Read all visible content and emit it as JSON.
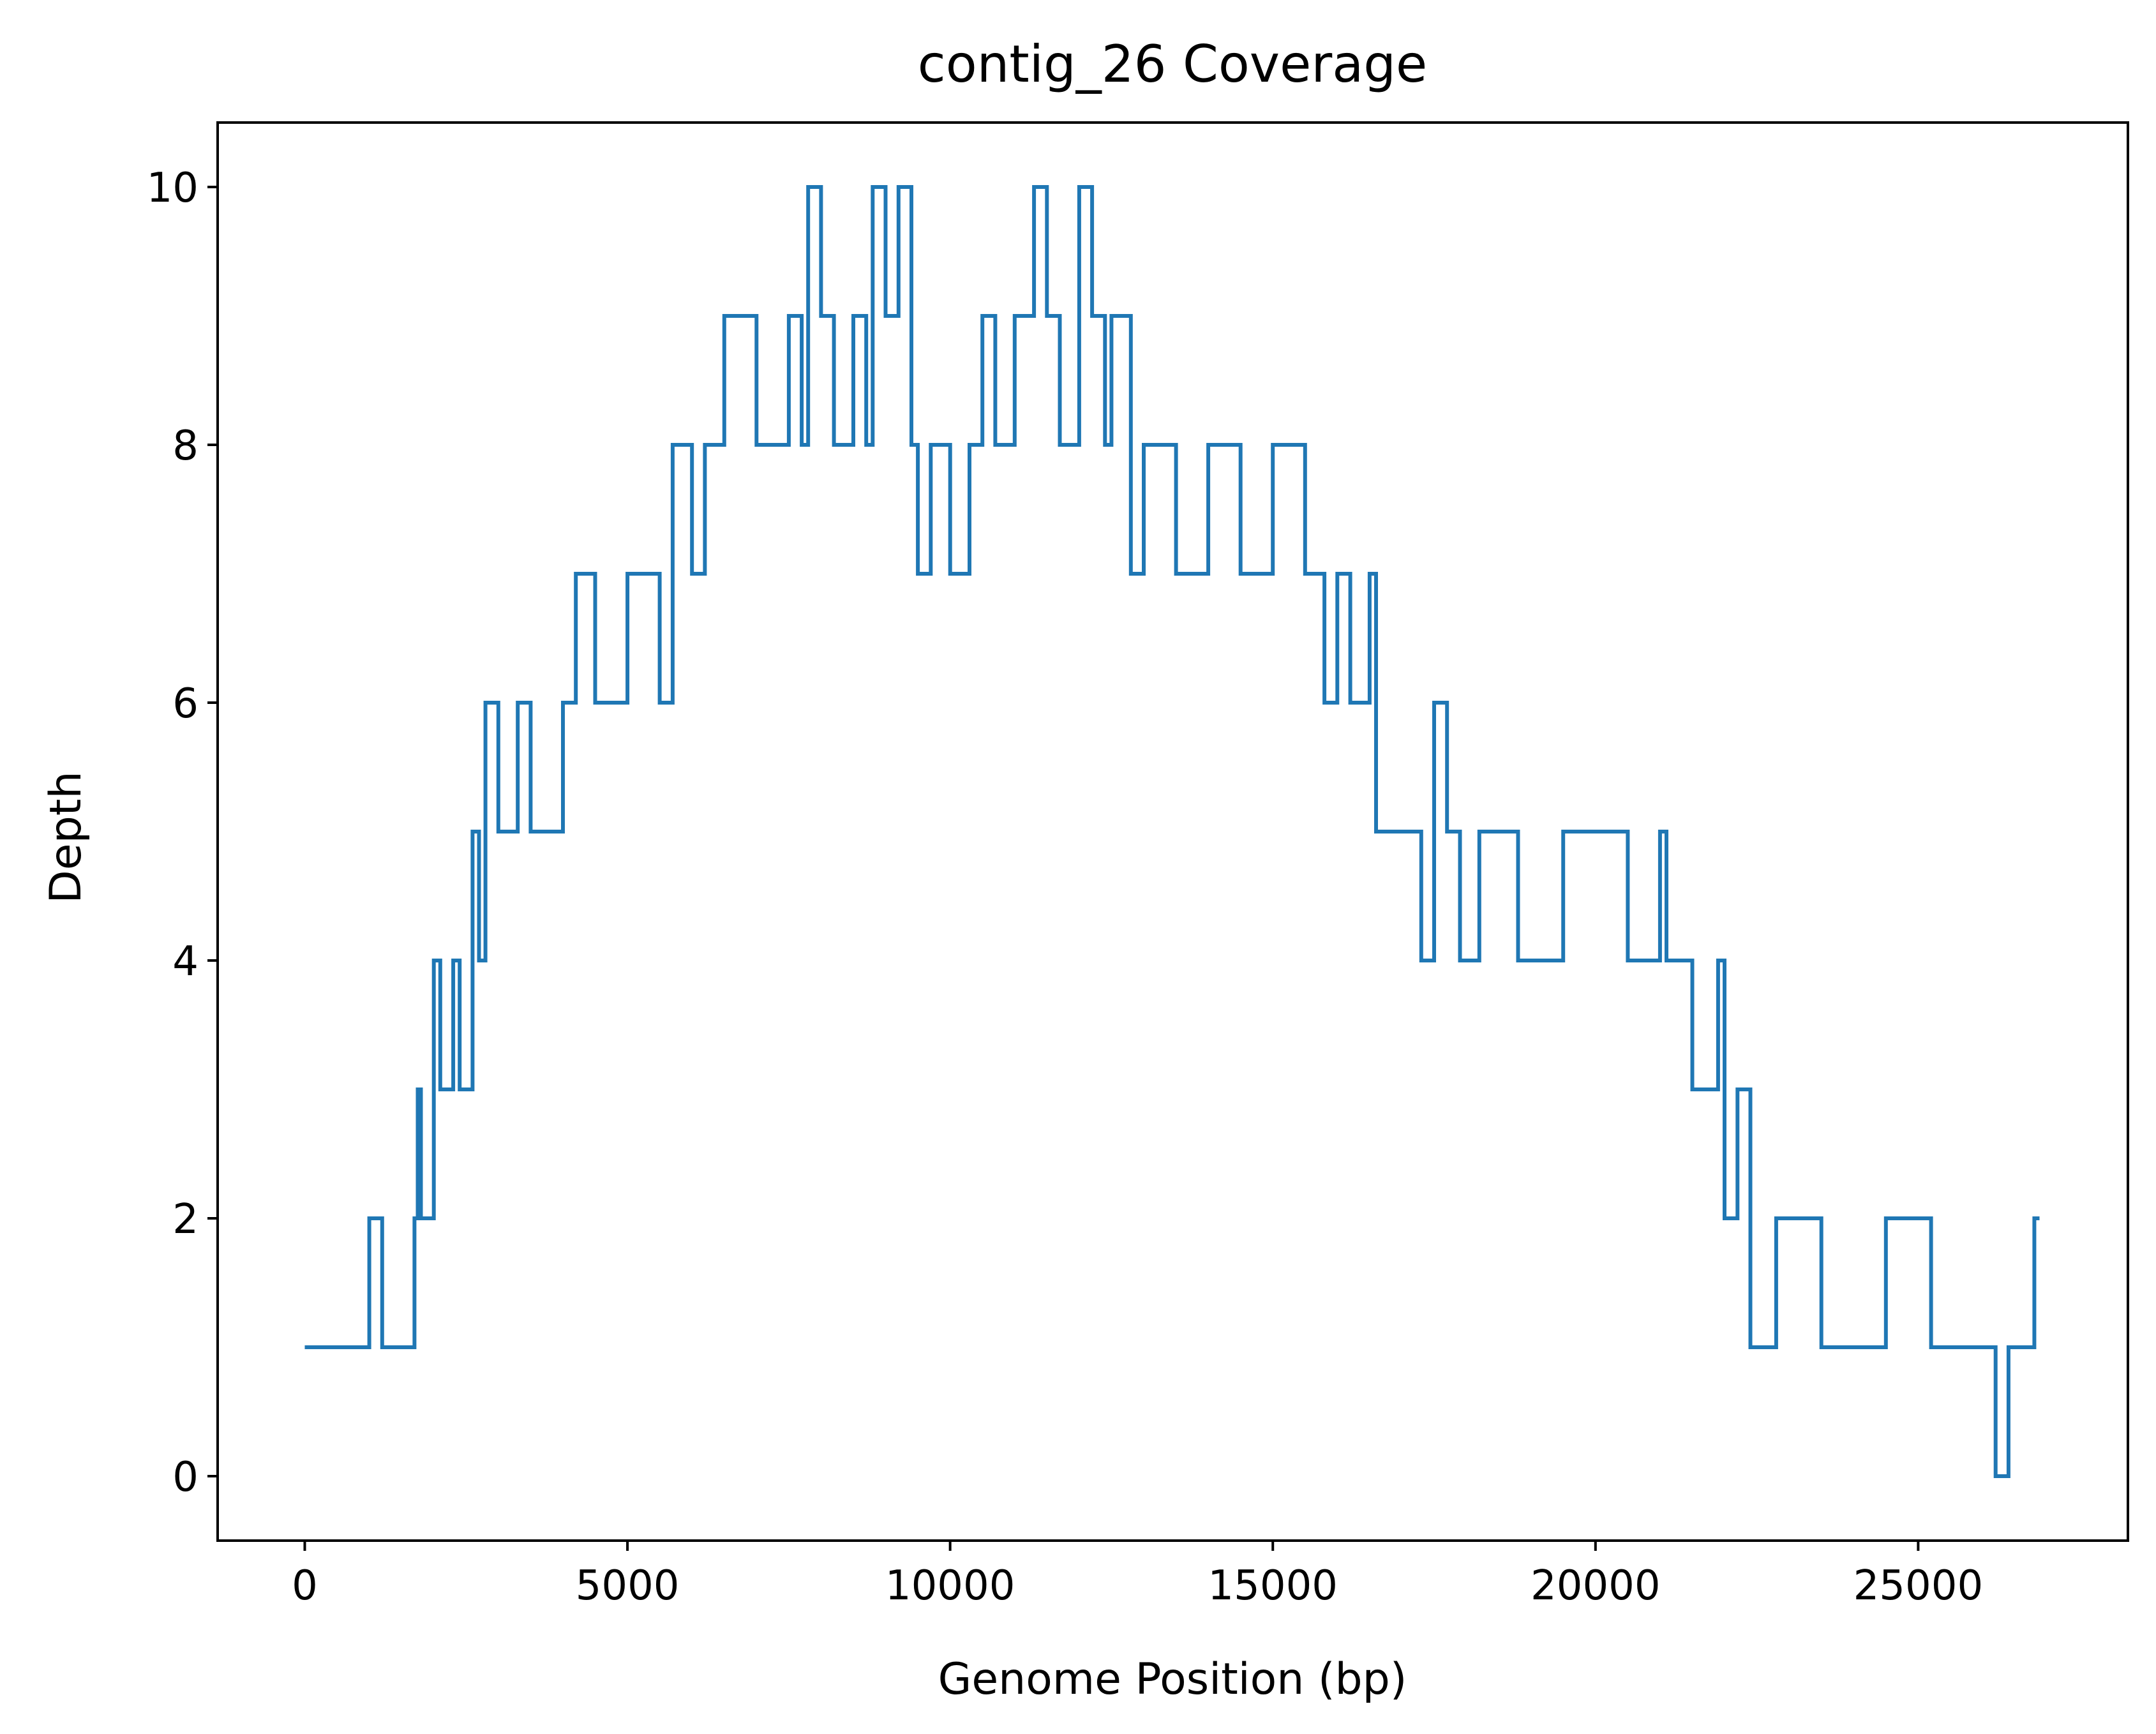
{
  "chart_data": {
    "type": "line",
    "title": "contig_26 Coverage",
    "xlabel": "Genome Position (bp)",
    "ylabel": "Depth",
    "xlim": [
      -1350,
      28250
    ],
    "ylim": [
      -0.5,
      10.5
    ],
    "xticks": [
      0,
      5000,
      10000,
      15000,
      20000,
      25000
    ],
    "yticks": [
      0,
      2,
      4,
      6,
      8,
      10
    ],
    "grid": false,
    "legend": "none",
    "colors": {
      "line": "#1f77b4",
      "axes": "#000000",
      "background": "#ffffff"
    },
    "series": [
      {
        "x": [
          0,
          1000,
          1200,
          1700,
          1750,
          1800,
          2000,
          2100,
          2300,
          2400,
          2600,
          2700,
          2800,
          3000,
          3300,
          3500,
          4000,
          4200,
          4500,
          5000,
          5500,
          5700,
          6000,
          6200,
          6500,
          7000,
          7500,
          7700,
          7800,
          8000,
          8200,
          8500,
          8700,
          8800,
          9000,
          9200,
          9400,
          9500,
          9700,
          10000,
          10300,
          10500,
          10700,
          11000,
          11300,
          11500,
          11700,
          12000,
          12200,
          12400,
          12500,
          12800,
          13000,
          13500,
          14000,
          14500,
          15000,
          15500,
          15800,
          16000,
          16200,
          16500,
          16600,
          17000,
          17300,
          17500,
          17700,
          17900,
          18200,
          18800,
          19500,
          20500,
          21000,
          21100,
          21500,
          21900,
          22000,
          22200,
          22400,
          22800,
          23500,
          24500,
          25200,
          25800,
          26200,
          26400,
          26800
        ],
        "y": [
          1,
          2,
          1,
          2,
          3,
          2,
          4,
          3,
          4,
          3,
          5,
          4,
          6,
          5,
          6,
          5,
          6,
          7,
          6,
          7,
          6,
          8,
          7,
          8,
          9,
          8,
          9,
          8,
          10,
          9,
          8,
          9,
          8,
          10,
          9,
          10,
          8,
          7,
          8,
          7,
          8,
          9,
          8,
          9,
          10,
          9,
          8,
          10,
          9,
          8,
          9,
          7,
          8,
          7,
          8,
          7,
          8,
          7,
          6,
          7,
          6,
          7,
          5,
          5,
          4,
          6,
          5,
          4,
          5,
          4,
          5,
          4,
          5,
          4,
          3,
          4,
          2,
          3,
          1,
          2,
          1,
          2,
          1,
          1,
          0,
          1,
          2
        ]
      }
    ]
  }
}
